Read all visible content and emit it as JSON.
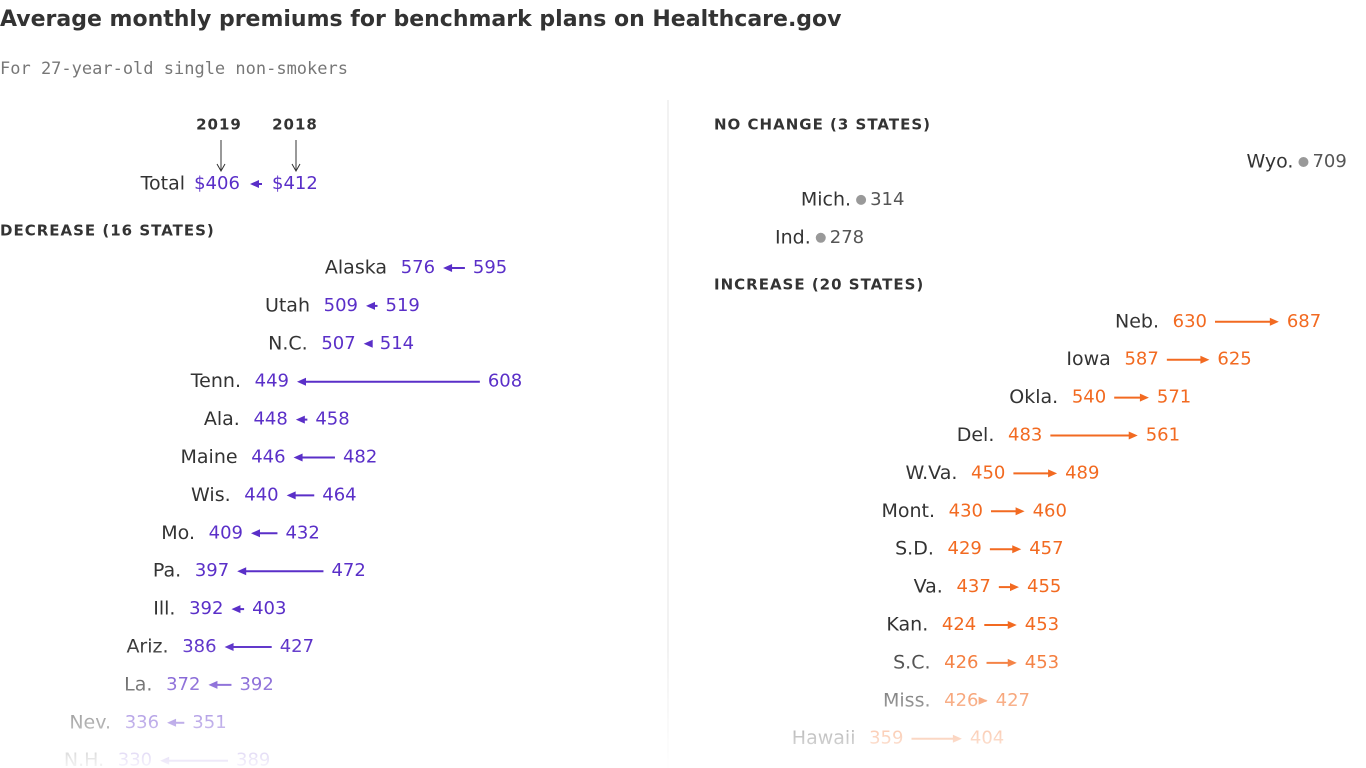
{
  "chart_data": {
    "type": "arrow",
    "title": "Average monthly premiums for benchmark plans on Healthcare.gov",
    "subtitle": "For 27-year-old single non-smokers",
    "year_labels": [
      "2019",
      "2018"
    ],
    "total": {
      "name": "Total",
      "values": [
        406,
        412
      ],
      "value_labels": [
        "$406",
        "$412"
      ],
      "color": "#5a2fc8"
    },
    "groups": [
      {
        "name": "DECREASE (16 STATES)",
        "color": "#5a2fc8",
        "rows": [
          {
            "name": "Alaska",
            "values": [
              576,
              595
            ]
          },
          {
            "name": "Utah",
            "values": [
              509,
              519
            ]
          },
          {
            "name": "N.C.",
            "values": [
              507,
              514
            ]
          },
          {
            "name": "Tenn.",
            "values": [
              449,
              608
            ]
          },
          {
            "name": "Ala.",
            "values": [
              448,
              458
            ]
          },
          {
            "name": "Maine",
            "values": [
              446,
              482
            ]
          },
          {
            "name": "Wis.",
            "values": [
              440,
              464
            ]
          },
          {
            "name": "Mo.",
            "values": [
              409,
              432
            ]
          },
          {
            "name": "Pa.",
            "values": [
              397,
              472
            ]
          },
          {
            "name": "Ill.",
            "values": [
              392,
              403
            ]
          },
          {
            "name": "Ariz.",
            "values": [
              386,
              427
            ]
          },
          {
            "name": "La.",
            "values": [
              372,
              392
            ]
          },
          {
            "name": "Nev.",
            "values": [
              336,
              351
            ]
          },
          {
            "name": "N.H.",
            "values": [
              330,
              389
            ]
          }
        ]
      },
      {
        "name": "NO CHANGE (3 STATES)",
        "color": "#999999",
        "rows": [
          {
            "name": "Wyo.",
            "values": [
              709
            ]
          },
          {
            "name": "Mich.",
            "values": [
              314
            ]
          },
          {
            "name": "Ind.",
            "values": [
              278
            ]
          }
        ]
      },
      {
        "name": "INCREASE (20 STATES)",
        "color": "#f26a21",
        "rows": [
          {
            "name": "Neb.",
            "values": [
              687,
              630
            ]
          },
          {
            "name": "Iowa",
            "values": [
              625,
              587
            ]
          },
          {
            "name": "Okla.",
            "values": [
              571,
              540
            ]
          },
          {
            "name": "Del.",
            "values": [
              561,
              483
            ]
          },
          {
            "name": "W.Va.",
            "values": [
              489,
              450
            ]
          },
          {
            "name": "Mont.",
            "values": [
              460,
              430
            ]
          },
          {
            "name": "S.D.",
            "values": [
              457,
              429
            ]
          },
          {
            "name": "Va.",
            "values": [
              455,
              437
            ]
          },
          {
            "name": "Kan.",
            "values": [
              453,
              424
            ]
          },
          {
            "name": "S.C.",
            "values": [
              453,
              426
            ]
          },
          {
            "name": "Miss.",
            "values": [
              427,
              426
            ]
          },
          {
            "name": "Hawaii",
            "values": [
              404,
              359
            ]
          }
        ]
      }
    ]
  }
}
